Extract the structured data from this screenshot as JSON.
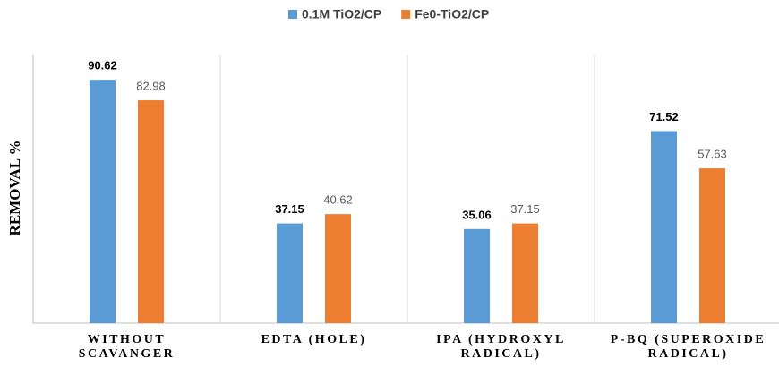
{
  "chart_data": {
    "type": "bar",
    "y_label": "REMOVAL %",
    "categories": [
      "WITHOUT SCAVANGER",
      "EDTA (HOLE)",
      "IPA (HYDROXYL RADICAL)",
      "P-BQ (SUPEROXIDE RADICAL)"
    ],
    "series": [
      {
        "name": "0.1M TiO2/CP",
        "color": "#5b9bd5",
        "values": [
          90.62,
          37.15,
          35.06,
          71.52
        ]
      },
      {
        "name": "Fe0-TiO2/CP",
        "color": "#ed7d31",
        "values": [
          82.98,
          40.62,
          37.15,
          57.63
        ]
      }
    ],
    "ylim": [
      0,
      100
    ]
  }
}
